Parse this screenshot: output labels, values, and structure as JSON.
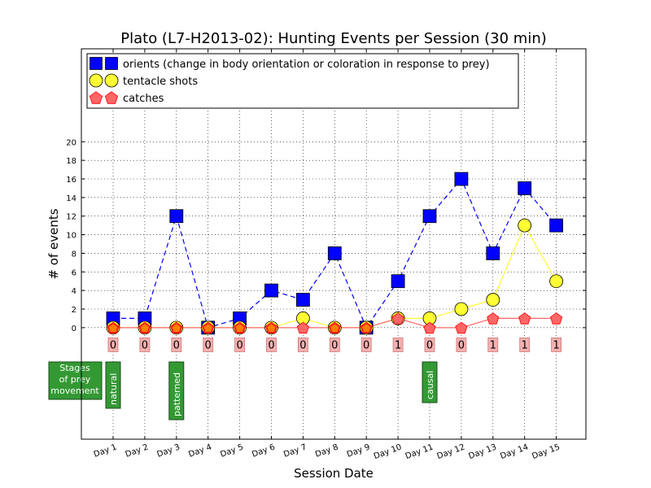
{
  "chart_data": {
    "type": "line",
    "title": "Plato (L7-H2013-02): Hunting Events per Session (30 min)",
    "xlabel": "Session Date",
    "ylabel": "# of events",
    "categories": [
      "Day 1",
      "Day 2",
      "Day 3",
      "Day 4",
      "Day 5",
      "Day 6",
      "Day 7",
      "Day 8",
      "Day 9",
      "Day 10",
      "Day 11",
      "Day 12",
      "Day 13",
      "Day 14",
      "Day 15"
    ],
    "yticks": [
      0,
      2,
      4,
      6,
      8,
      10,
      12,
      14,
      16,
      18,
      20
    ],
    "ylim": [
      -12,
      30
    ],
    "grid": true,
    "legend_position": "top-left",
    "series": [
      {
        "name": "orients (change in body orientation or coloration in response to prey)",
        "marker": "square",
        "color": "#0000ff",
        "line": "dashed",
        "values": [
          1,
          1,
          12,
          0,
          1,
          4,
          3,
          8,
          0,
          5,
          12,
          16,
          8,
          15,
          11
        ]
      },
      {
        "name": "tentacle shots",
        "marker": "circle",
        "color": "#ffff33",
        "line": "solid",
        "values": [
          0,
          0,
          0,
          0,
          0,
          0,
          1,
          0,
          0,
          1,
          1,
          2,
          3,
          11,
          5
        ]
      },
      {
        "name": "catches",
        "marker": "pentagon",
        "color": "#ff6666",
        "line": "solid",
        "values": [
          0,
          0,
          0,
          0,
          0,
          0,
          0,
          0,
          0,
          1,
          0,
          0,
          1,
          1,
          1
        ]
      }
    ],
    "catch_labels": [
      "0",
      "0",
      "0",
      "0",
      "0",
      "0",
      "0",
      "0",
      "0",
      "1",
      "0",
      "0",
      "1",
      "1",
      "1"
    ],
    "stages": {
      "title": "Stages of prey movement",
      "items": [
        {
          "label": "natural",
          "day_index": 0
        },
        {
          "label": "patterned",
          "day_index": 2
        },
        {
          "label": "causal",
          "day_index": 10
        }
      ],
      "color": "#339933"
    }
  }
}
